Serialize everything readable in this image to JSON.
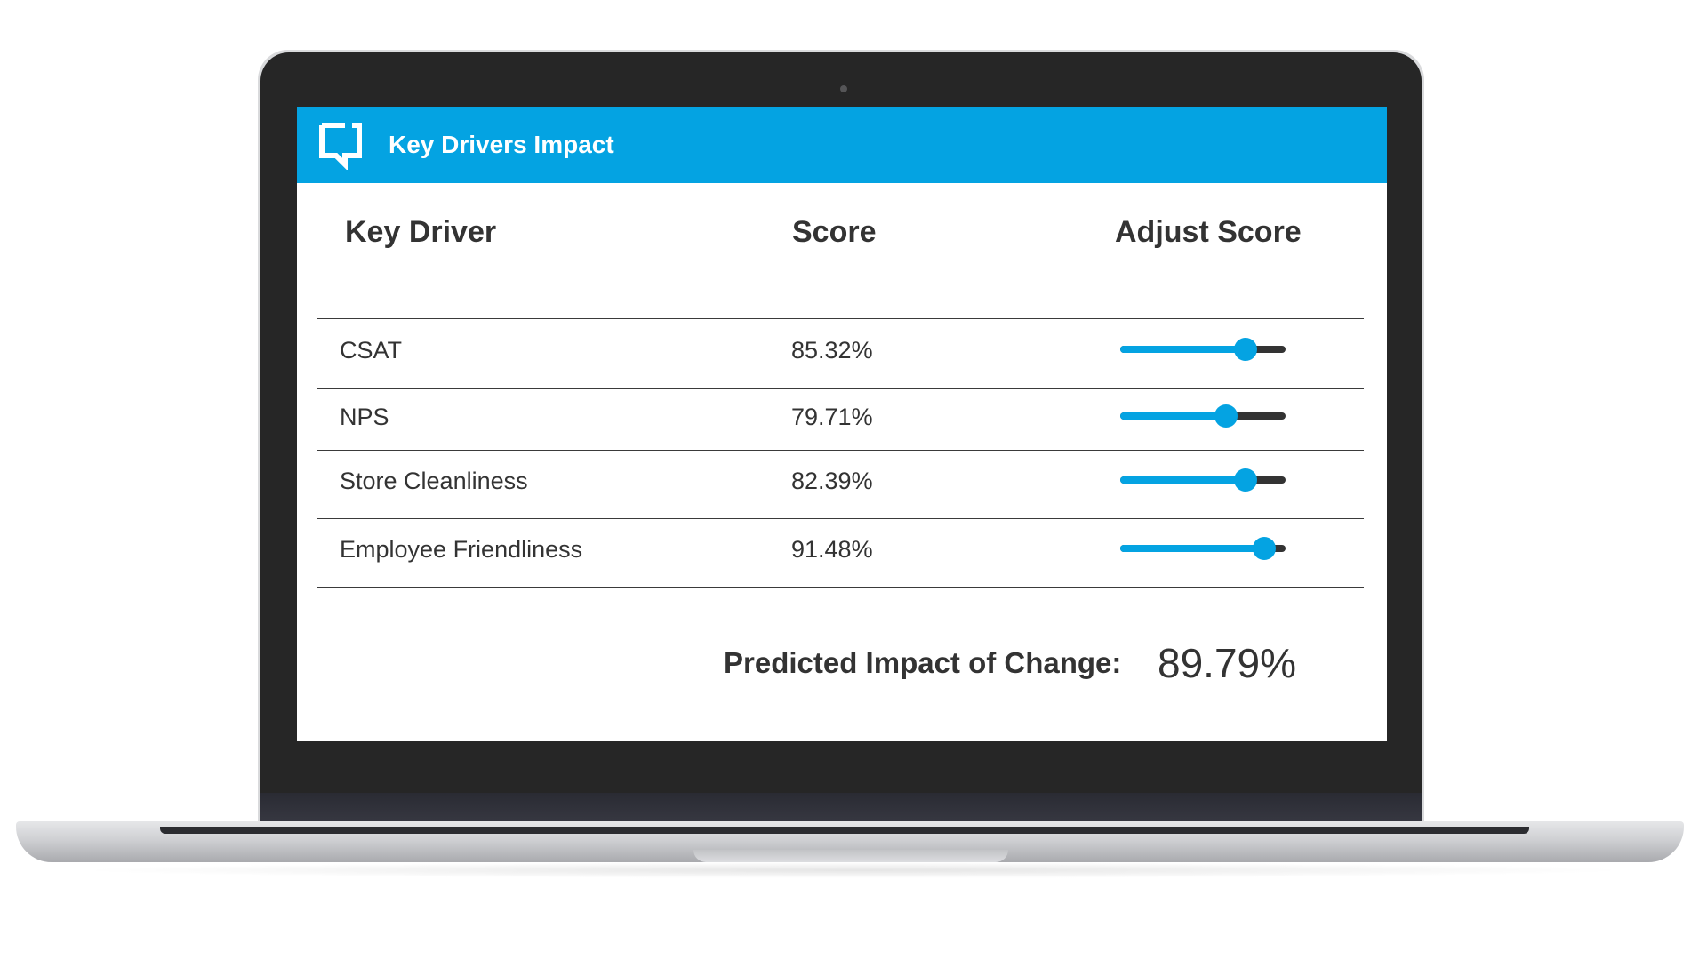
{
  "app": {
    "title": "Key Drivers Impact",
    "logo_icon": "speech-bubble-icon",
    "accent_color": "#04a3e2"
  },
  "table": {
    "headers": {
      "driver": "Key Driver",
      "score": "Score",
      "adjust": "Adjust Score"
    },
    "rows": [
      {
        "driver": "CSAT",
        "score": "85.32%",
        "slider_value": 0.76
      },
      {
        "driver": "NPS",
        "score": "79.71%",
        "slider_value": 0.64
      },
      {
        "driver": "Store Cleanliness",
        "score": "82.39%",
        "slider_value": 0.76
      },
      {
        "driver": "Employee Friendliness",
        "score": "91.48%",
        "slider_value": 0.87
      }
    ]
  },
  "impact": {
    "label": "Predicted Impact of Change:",
    "value": "89.79%"
  }
}
